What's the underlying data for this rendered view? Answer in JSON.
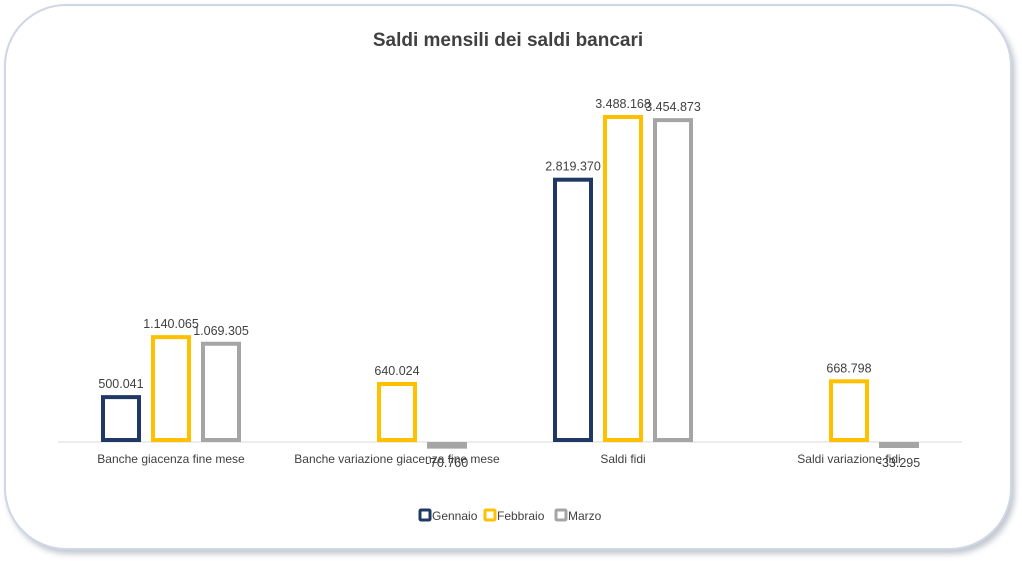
{
  "chart_data": {
    "type": "bar",
    "title": "Saldi mensili dei saldi bancari",
    "categories": [
      "Banche giacenza fine mese",
      "Banche variazione giacenza fine mese",
      "Saldi fidi",
      "Saldi variazione fidi"
    ],
    "series": [
      {
        "name": "Gennaio",
        "color": "#1f3864",
        "values": [
          500041,
          null,
          2819370,
          null
        ],
        "labels": [
          "500.041",
          "",
          "2.819.370",
          ""
        ]
      },
      {
        "name": "Febbraio",
        "color": "#ffc000",
        "values": [
          1140065,
          640024,
          3488168,
          668798
        ],
        "labels": [
          "1.140.065",
          "640.024",
          "3.488.168",
          "668.798"
        ]
      },
      {
        "name": "Marzo",
        "color": "#a5a5a5",
        "values": [
          1069305,
          -70760,
          3454873,
          -33295
        ],
        "labels": [
          "1.069.305",
          "-70.760",
          "3.454.873",
          "-33.295"
        ]
      }
    ],
    "ylim": [
      -100000,
      3600000
    ],
    "grid": false,
    "legend_position": "bottom"
  }
}
